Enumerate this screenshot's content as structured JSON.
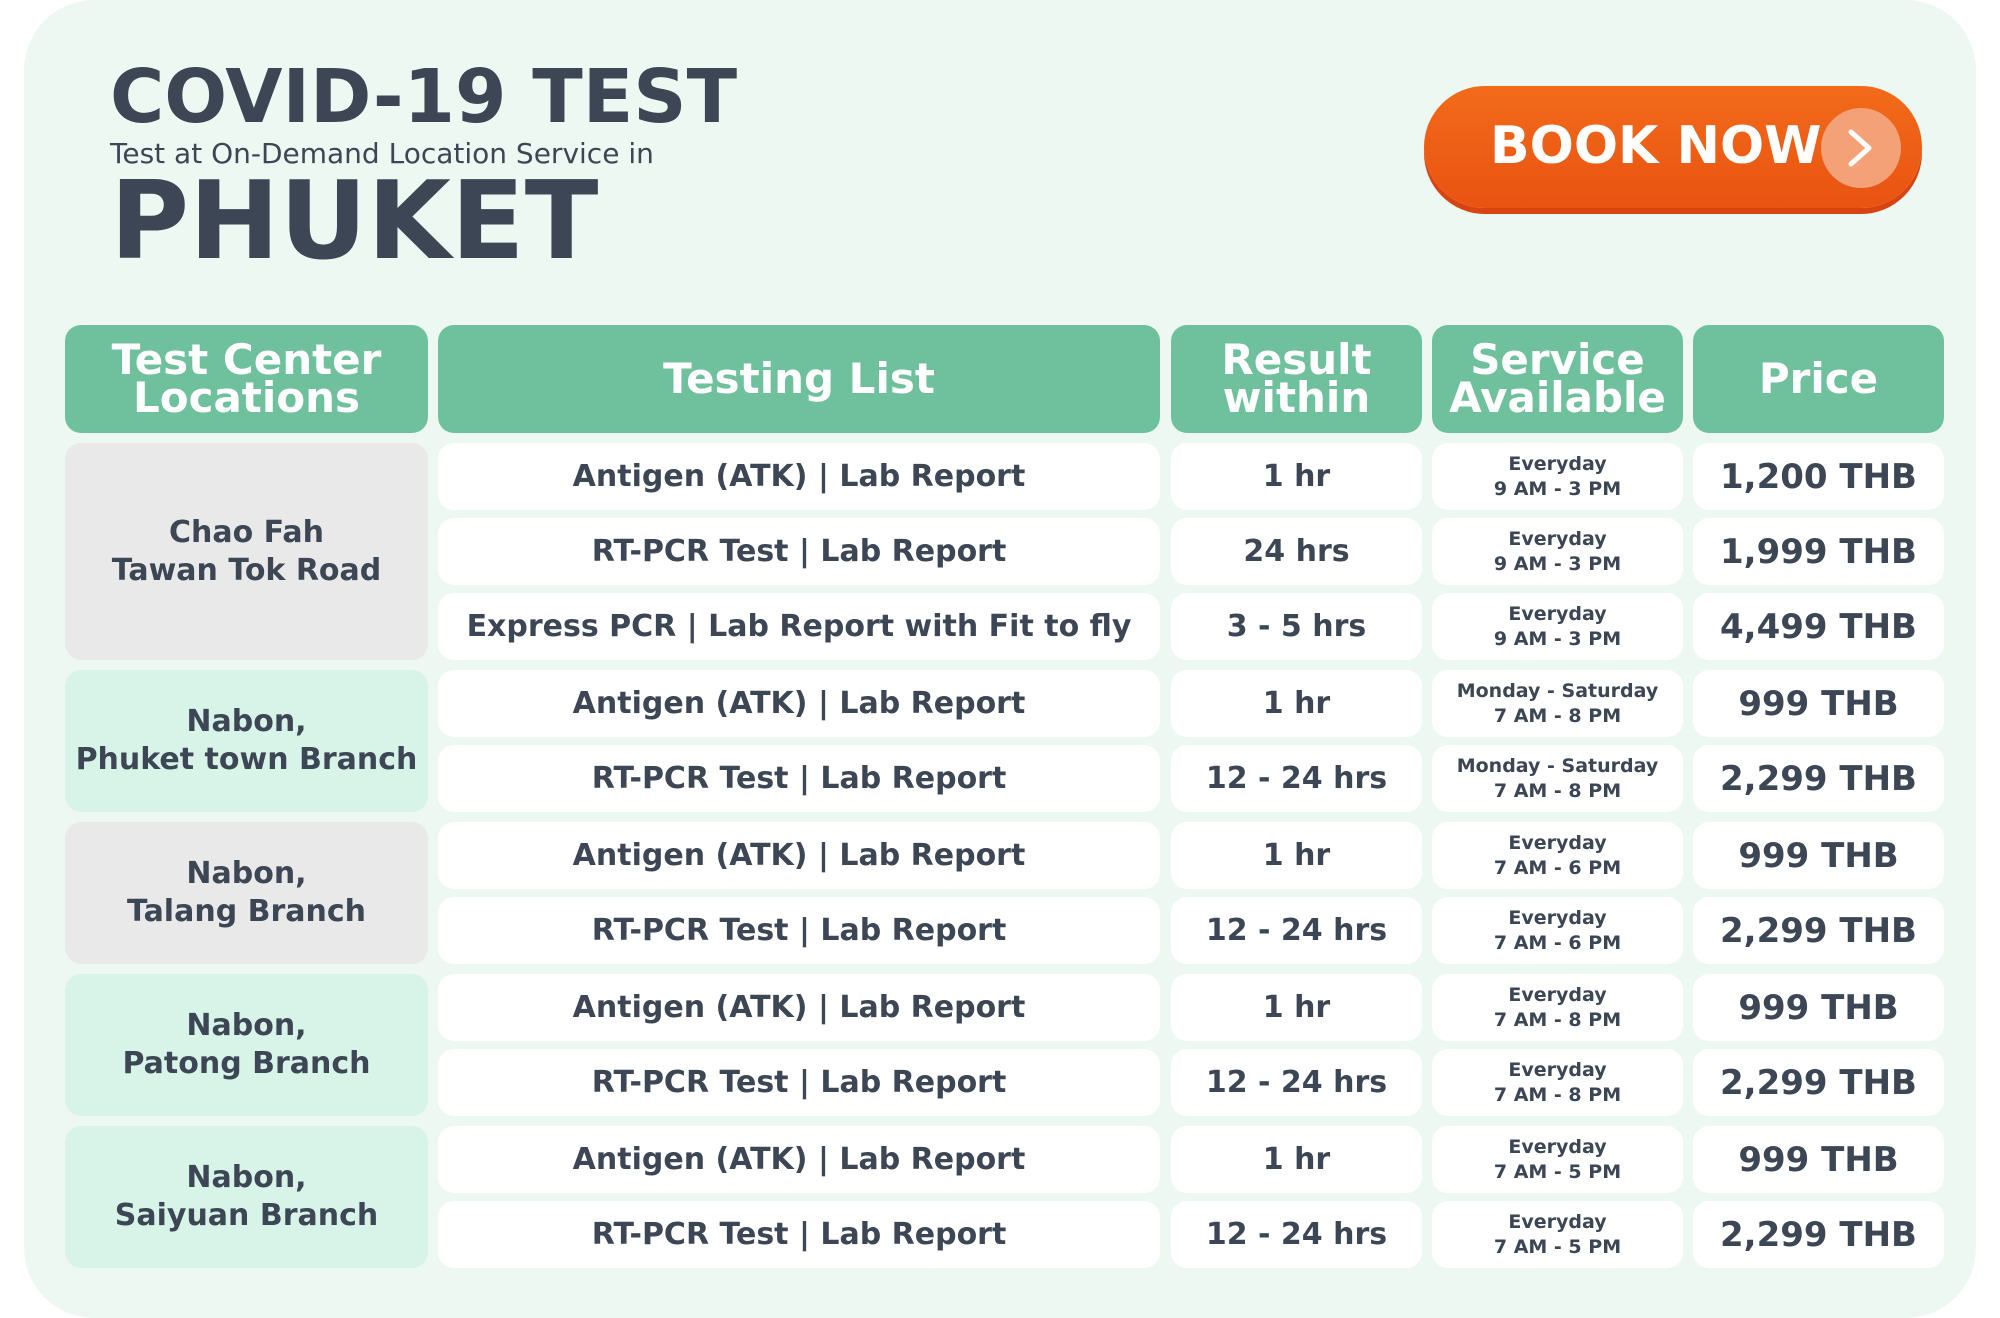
{
  "header": {
    "title_line1": "COVID-19 TEST",
    "subtitle": "Test at On-Demand Location Service in",
    "title_line2": "PHUKET"
  },
  "book_button": {
    "label": "BOOK NOW",
    "icon": "chevron-right-icon"
  },
  "table": {
    "columns": [
      {
        "line1": "Test Center",
        "line2": "Locations"
      },
      {
        "line1": "Testing List",
        "line2": ""
      },
      {
        "line1": "Result",
        "line2": "within"
      },
      {
        "line1": "Service",
        "line2": "Available"
      },
      {
        "line1": "Price",
        "line2": ""
      }
    ],
    "locations": [
      {
        "line1": "Chao Fah",
        "line2": "Tawan Tok Road"
      },
      {
        "line1": "Nabon,",
        "line2": "Phuket town Branch"
      },
      {
        "line1": "Nabon,",
        "line2": "Talang Branch"
      },
      {
        "line1": "Nabon,",
        "line2": "Patong Branch"
      },
      {
        "line1": "Nabon,",
        "line2": "Saiyuan Branch"
      }
    ],
    "rows": [
      {
        "test": "Antigen (ATK) | Lab Report",
        "result": "1 hr",
        "days": "Everyday",
        "hours": "9 AM - 3 PM",
        "price": "1,200 THB"
      },
      {
        "test": "RT-PCR Test | Lab Report",
        "result": "24 hrs",
        "days": "Everyday",
        "hours": "9 AM - 3 PM",
        "price": "1,999 THB"
      },
      {
        "test": "Express PCR | Lab Report with Fit to fly",
        "result": "3 - 5 hrs",
        "days": "Everyday",
        "hours": "9 AM - 3 PM",
        "price": "4,499 THB"
      },
      {
        "test": "Antigen (ATK) | Lab Report",
        "result": "1 hr",
        "days": "Monday - Saturday",
        "hours": "7 AM - 8 PM",
        "price": "999 THB"
      },
      {
        "test": "RT-PCR Test | Lab Report",
        "result": "12 - 24 hrs",
        "days": "Monday - Saturday",
        "hours": "7 AM - 8 PM",
        "price": "2,299 THB"
      },
      {
        "test": "Antigen (ATK) | Lab Report",
        "result": "1 hr",
        "days": "Everyday",
        "hours": "7 AM - 6 PM",
        "price": "999 THB"
      },
      {
        "test": "RT-PCR Test | Lab Report",
        "result": "12 - 24 hrs",
        "days": "Everyday",
        "hours": "7 AM - 6 PM",
        "price": "2,299 THB"
      },
      {
        "test": "Antigen (ATK) | Lab Report",
        "result": "1 hr",
        "days": "Everyday",
        "hours": "7 AM - 8 PM",
        "price": "999 THB"
      },
      {
        "test": "RT-PCR Test | Lab Report",
        "result": "12 - 24 hrs",
        "days": "Everyday",
        "hours": "7 AM - 8 PM",
        "price": "2,299 THB"
      },
      {
        "test": "Antigen (ATK) | Lab Report",
        "result": "1 hr",
        "days": "Everyday",
        "hours": "7 AM - 5 PM",
        "price": "999 THB"
      },
      {
        "test": "RT-PCR Test | Lab Report",
        "result": "12 - 24 hrs",
        "days": "Everyday",
        "hours": "7 AM - 5 PM",
        "price": "2,299 THB"
      }
    ]
  },
  "colors": {
    "header_green": "#6fc19d",
    "accent_orange": "#f26b1a",
    "text_dark": "#3d4654",
    "location_grey": "#e9e9e9",
    "location_mint": "#d8f3e7"
  }
}
